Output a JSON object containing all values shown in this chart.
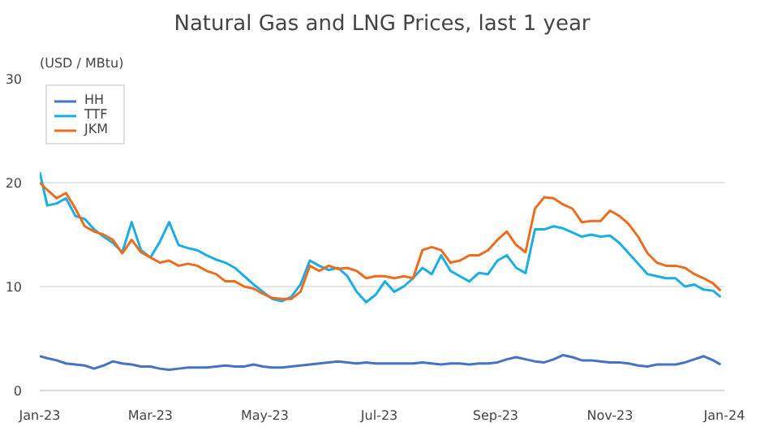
{
  "chart_data": {
    "type": "line",
    "title": "Natural Gas and LNG Prices, last 1 year",
    "ylabel": "(USD / MBtu)",
    "x": [
      "2023-01-01",
      "2023-01-05",
      "2023-01-10",
      "2023-01-15",
      "2023-01-20",
      "2023-01-25",
      "2023-01-30",
      "2023-02-04",
      "2023-02-09",
      "2023-02-14",
      "2023-02-19",
      "2023-02-24",
      "2023-03-01",
      "2023-03-06",
      "2023-03-11",
      "2023-03-16",
      "2023-03-21",
      "2023-03-26",
      "2023-03-31",
      "2023-04-05",
      "2023-04-10",
      "2023-04-15",
      "2023-04-20",
      "2023-04-25",
      "2023-04-30",
      "2023-05-05",
      "2023-05-10",
      "2023-05-15",
      "2023-05-20",
      "2023-05-25",
      "2023-05-30",
      "2023-06-04",
      "2023-06-09",
      "2023-06-14",
      "2023-06-19",
      "2023-06-24",
      "2023-06-29",
      "2023-07-04",
      "2023-07-09",
      "2023-07-14",
      "2023-07-19",
      "2023-07-24",
      "2023-07-29",
      "2023-08-03",
      "2023-08-08",
      "2023-08-13",
      "2023-08-18",
      "2023-08-23",
      "2023-08-28",
      "2023-09-02",
      "2023-09-07",
      "2023-09-12",
      "2023-09-17",
      "2023-09-22",
      "2023-09-27",
      "2023-10-02",
      "2023-10-07",
      "2023-10-12",
      "2023-10-17",
      "2023-10-22",
      "2023-10-27",
      "2023-11-01",
      "2023-11-06",
      "2023-11-11",
      "2023-11-16",
      "2023-11-21",
      "2023-11-26",
      "2023-12-01",
      "2023-12-06",
      "2023-12-11",
      "2023-12-16",
      "2023-12-21",
      "2023-12-26",
      "2023-12-30"
    ],
    "series": [
      {
        "name": "HH",
        "color": "#4472c4",
        "values": [
          3.3,
          3.1,
          2.9,
          2.6,
          2.5,
          2.4,
          2.1,
          2.4,
          2.8,
          2.6,
          2.5,
          2.3,
          2.3,
          2.1,
          2.0,
          2.1,
          2.2,
          2.2,
          2.2,
          2.3,
          2.4,
          2.3,
          2.3,
          2.5,
          2.3,
          2.2,
          2.2,
          2.3,
          2.4,
          2.5,
          2.6,
          2.7,
          2.8,
          2.7,
          2.6,
          2.7,
          2.6,
          2.6,
          2.6,
          2.6,
          2.6,
          2.7,
          2.6,
          2.5,
          2.6,
          2.6,
          2.5,
          2.6,
          2.6,
          2.7,
          3.0,
          3.2,
          3.0,
          2.8,
          2.7,
          3.0,
          3.4,
          3.2,
          2.9,
          2.9,
          2.8,
          2.7,
          2.7,
          2.6,
          2.4,
          2.3,
          2.5,
          2.5,
          2.5,
          2.7,
          3.0,
          3.3,
          2.9,
          2.5
        ]
      },
      {
        "name": "TTF",
        "color": "#1aaee5",
        "values": [
          21.0,
          17.8,
          18.0,
          18.5,
          16.8,
          16.5,
          15.5,
          14.8,
          14.2,
          13.3,
          16.2,
          13.5,
          12.8,
          14.3,
          16.2,
          14.0,
          13.7,
          13.5,
          13.0,
          12.6,
          12.3,
          11.8,
          11.0,
          10.2,
          9.5,
          8.8,
          8.6,
          9.0,
          10.2,
          12.5,
          12.0,
          11.6,
          11.8,
          11.0,
          9.5,
          8.5,
          9.2,
          10.5,
          9.5,
          10.0,
          10.8,
          11.8,
          11.2,
          13.0,
          11.5,
          11.0,
          10.5,
          11.3,
          11.2,
          12.5,
          13.0,
          11.8,
          11.3,
          15.5,
          15.5,
          15.8,
          15.6,
          15.2,
          14.8,
          15.0,
          14.8,
          14.9,
          14.2,
          13.2,
          12.2,
          11.2,
          11.0,
          10.8,
          10.8,
          10.0,
          10.2,
          9.7,
          9.6,
          9.0
        ]
      },
      {
        "name": "JKM",
        "color": "#ed6d1f",
        "values": [
          20.0,
          19.3,
          18.5,
          19.0,
          17.5,
          15.8,
          15.3,
          15.0,
          14.5,
          13.2,
          14.5,
          13.3,
          12.8,
          12.3,
          12.5,
          12.0,
          12.2,
          12.0,
          11.5,
          11.2,
          10.5,
          10.5,
          10.0,
          9.8,
          9.3,
          8.9,
          8.8,
          8.8,
          9.5,
          12.0,
          11.5,
          12.0,
          11.7,
          11.8,
          11.5,
          10.8,
          11.0,
          11.0,
          10.8,
          11.0,
          10.8,
          13.5,
          13.8,
          13.5,
          12.3,
          12.5,
          13.0,
          13.0,
          13.5,
          14.5,
          15.3,
          14.0,
          13.3,
          17.5,
          18.6,
          18.5,
          17.9,
          17.5,
          16.2,
          16.3,
          16.3,
          17.3,
          16.8,
          16.0,
          14.8,
          13.2,
          12.3,
          12.0,
          12.0,
          11.8,
          11.2,
          10.8,
          10.3,
          9.6
        ]
      }
    ],
    "xlim": [
      "2023-01-01",
      "2024-01-01"
    ],
    "xticks": [
      {
        "value": "2023-01-01",
        "label": "Jan-23"
      },
      {
        "value": "2023-03-01",
        "label": "Mar-23"
      },
      {
        "value": "2023-05-01",
        "label": "May-23"
      },
      {
        "value": "2023-07-01",
        "label": "Jul-23"
      },
      {
        "value": "2023-09-01",
        "label": "Sep-23"
      },
      {
        "value": "2023-11-01",
        "label": "Nov-23"
      },
      {
        "value": "2024-01-01",
        "label": "Jan-24"
      }
    ],
    "ylim": [
      0,
      30
    ],
    "yticks": [
      0,
      10,
      20,
      30
    ],
    "grid": "y",
    "legend": "top left",
    "marker": "none",
    "line_style": "solid"
  }
}
